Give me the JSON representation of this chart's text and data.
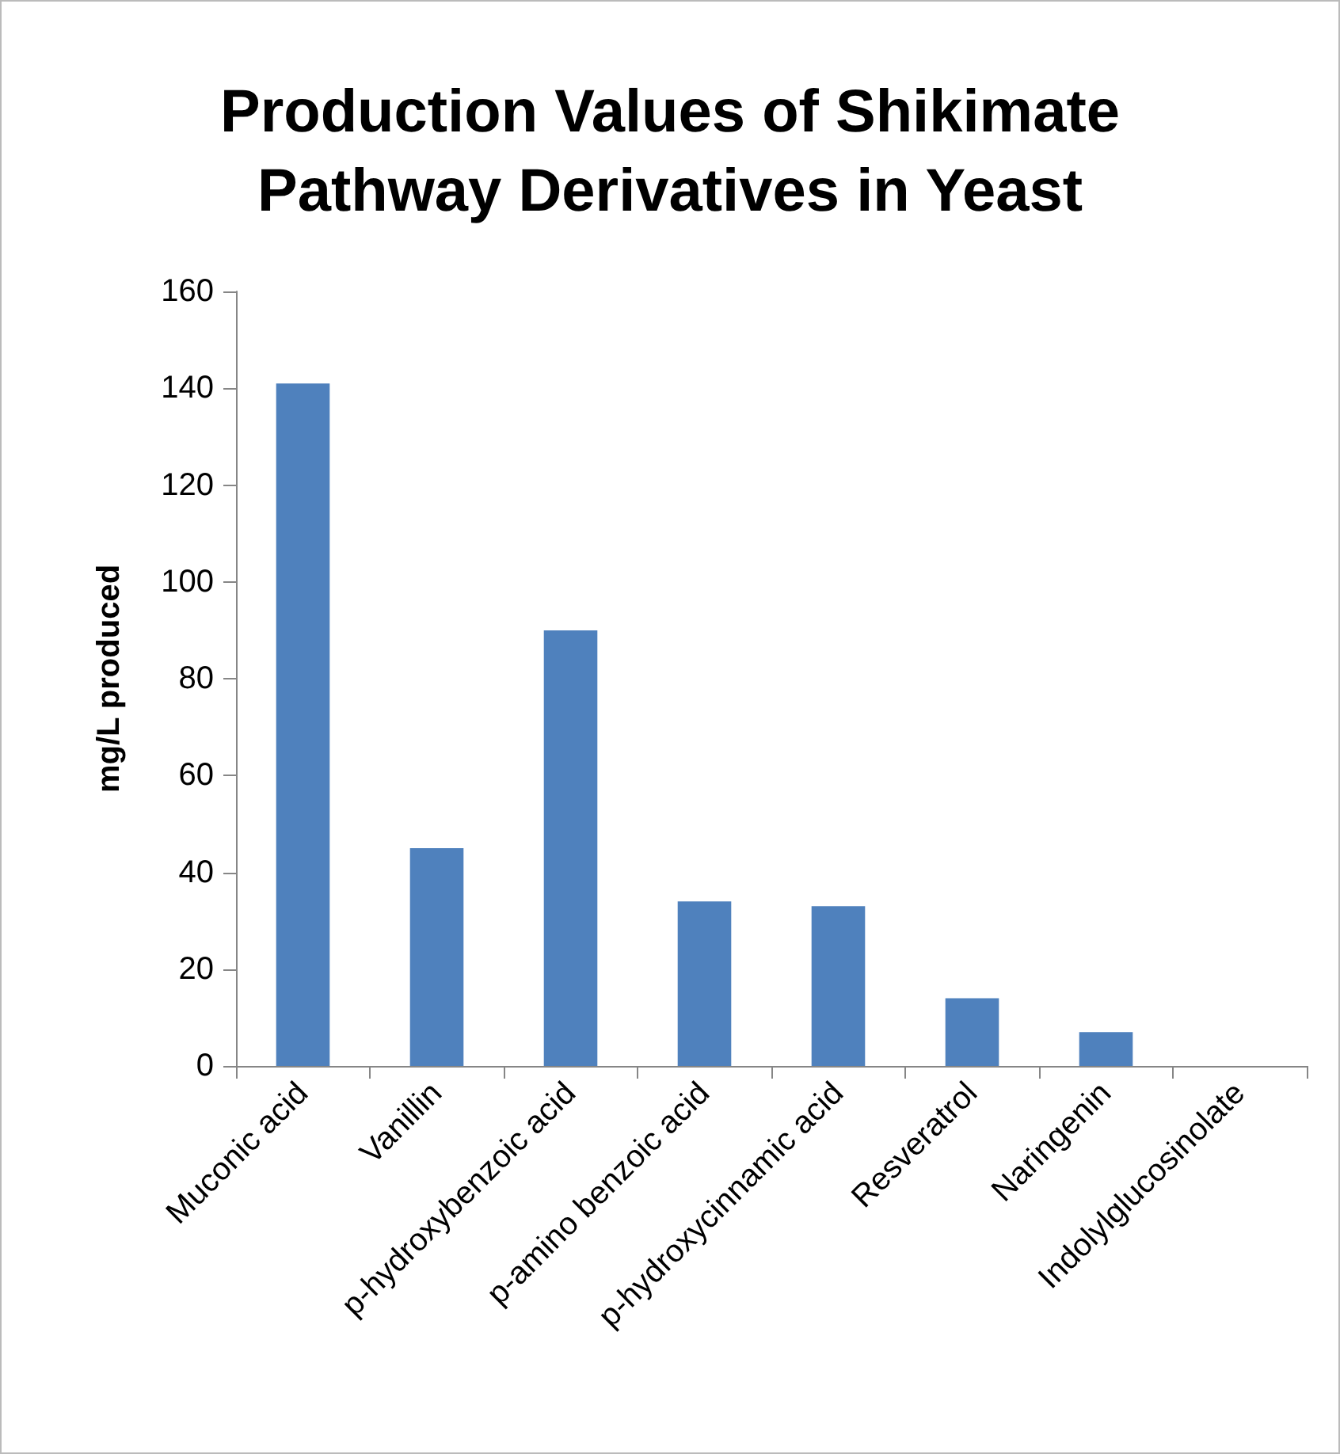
{
  "chart_data": {
    "type": "bar",
    "title": "Production Values of Shikimate\nPathway Derivatives in Yeast",
    "ylabel": "mg/L produced",
    "categories": [
      "Muconic acid",
      "Vanillin",
      "p-hydroxybenzoic acid",
      "p-amino benzoic acid",
      "p-hydroxycinnamic acid",
      "Resveratrol",
      "Naringenin",
      "Indolylglucosinolate"
    ],
    "values": [
      141,
      45,
      90,
      34,
      33,
      14,
      7,
      0
    ],
    "color": "#4f81bd",
    "ylim": [
      0,
      160
    ],
    "yticks": [
      0,
      20,
      40,
      60,
      80,
      100,
      120,
      140,
      160
    ]
  }
}
